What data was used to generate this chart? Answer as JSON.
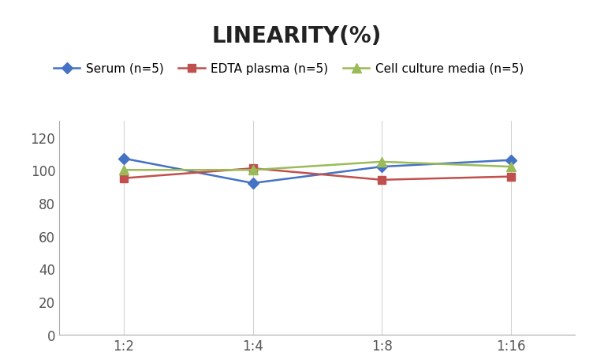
{
  "title": "LINEARITY(%)",
  "x_labels": [
    "1:2",
    "1:4",
    "1:8",
    "1:16"
  ],
  "x_positions": [
    0,
    1,
    2,
    3
  ],
  "series": [
    {
      "label": "Serum (n=5)",
      "values": [
        107,
        92,
        102,
        106
      ],
      "color": "#4472C4",
      "marker": "D",
      "markersize": 7,
      "linewidth": 1.8
    },
    {
      "label": "EDTA plasma (n=5)",
      "values": [
        95,
        101,
        94,
        96
      ],
      "color": "#C0504D",
      "marker": "s",
      "markersize": 7,
      "linewidth": 1.8
    },
    {
      "label": "Cell culture media (n=5)",
      "values": [
        100,
        100,
        105,
        102
      ],
      "color": "#9BBB59",
      "marker": "^",
      "markersize": 8,
      "linewidth": 1.8
    }
  ],
  "ylim": [
    0,
    130
  ],
  "yticks": [
    0,
    20,
    40,
    60,
    80,
    100,
    120
  ],
  "background_color": "#ffffff",
  "grid_color": "#d3d3d3",
  "title_fontsize": 20,
  "legend_fontsize": 11,
  "tick_fontsize": 12
}
